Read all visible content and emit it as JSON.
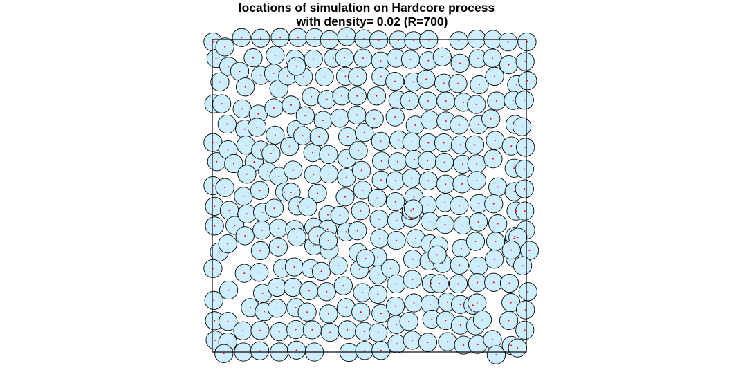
{
  "chart_data": {
    "type": "scatter",
    "title_line1": "locations of simulation on Hardcore process",
    "title_line2": "with density= 0.02 (R=700)",
    "xlim": [
      0,
      100
    ],
    "ylim": [
      0,
      100
    ],
    "grid": false,
    "legend": "none",
    "hardcore_radius": 2.9,
    "colors": {
      "disc_fill": "#cceeff",
      "disc_stroke": "#000000",
      "point": "#ff0000",
      "frame": "#000000"
    },
    "points": [
      [
        0.2,
        99.2
      ],
      [
        1.2,
        93.9
      ],
      [
        2.4,
        86.4
      ],
      [
        0.5,
        79.4
      ],
      [
        0.2,
        67.0
      ],
      [
        1.4,
        60.9
      ],
      [
        0.2,
        53.2
      ],
      [
        0.7,
        46.6
      ],
      [
        0.7,
        40.3
      ],
      [
        2.2,
        32.0
      ],
      [
        0.2,
        26.7
      ],
      [
        0.5,
        16.5
      ],
      [
        0.7,
        10.0
      ],
      [
        0.9,
        3.8
      ],
      [
        4.0,
        97.6
      ],
      [
        5.2,
        91.4
      ],
      [
        3.0,
        79.4
      ],
      [
        4.7,
        72.9
      ],
      [
        5.0,
        64.7
      ],
      [
        6.8,
        60.3
      ],
      [
        4.0,
        52.6
      ],
      [
        5.4,
        45.3
      ],
      [
        7.2,
        40.5
      ],
      [
        4.9,
        34.6
      ],
      [
        5.2,
        19.8
      ],
      [
        5.0,
        9.8
      ],
      [
        4.9,
        3.2
      ],
      [
        3.7,
        -0.5
      ],
      [
        9.3,
        100.6
      ],
      [
        8.7,
        89.8
      ],
      [
        10.5,
        84.8
      ],
      [
        9.5,
        77.8
      ],
      [
        10.3,
        71.3
      ],
      [
        10.7,
        66.2
      ],
      [
        13.3,
        60.8
      ],
      [
        11.0,
        56.9
      ],
      [
        9.9,
        49.8
      ],
      [
        11.0,
        44.2
      ],
      [
        10.4,
        37.2
      ],
      [
        10.2,
        25.2
      ],
      [
        12.1,
        14.2
      ],
      [
        9.7,
        6.8
      ],
      [
        9.9,
        0.0
      ],
      [
        15.4,
        100.4
      ],
      [
        13.0,
        94.1
      ],
      [
        15.4,
        88.5
      ],
      [
        14.6,
        76.1
      ],
      [
        14.2,
        71.9
      ],
      [
        15.4,
        64.6
      ],
      [
        17.6,
        57.7
      ],
      [
        15.1,
        51.7
      ],
      [
        16.0,
        44.7
      ],
      [
        15.8,
        39.0
      ],
      [
        15.3,
        32.4
      ],
      [
        14.9,
        25.5
      ],
      [
        16.0,
        18.8
      ],
      [
        16.5,
        12.9
      ],
      [
        15.2,
        6.9
      ],
      [
        15.1,
        0.4
      ],
      [
        21.6,
        100.6
      ],
      [
        20.0,
        94.9
      ],
      [
        19.5,
        89.2
      ],
      [
        21.2,
        84.2
      ],
      [
        19.6,
        78.1
      ],
      [
        20.0,
        69.4
      ],
      [
        18.7,
        63.5
      ],
      [
        21.2,
        56.2
      ],
      [
        23.0,
        51.2
      ],
      [
        19.7,
        46.0
      ],
      [
        21.1,
        39.6
      ],
      [
        21.0,
        33.6
      ],
      [
        22.3,
        26.8
      ],
      [
        20.6,
        20.7
      ],
      [
        20.6,
        14.0
      ],
      [
        21.3,
        6.5
      ],
      [
        21.3,
        0.0
      ],
      [
        27.3,
        100.6
      ],
      [
        26.3,
        93.7
      ],
      [
        24.0,
        88.3
      ],
      [
        25.1,
        79.0
      ],
      [
        26.7,
        71.1
      ],
      [
        24.6,
        65.8
      ],
      [
        25.7,
        58.2
      ],
      [
        25.1,
        51.1
      ],
      [
        27.1,
        46.7
      ],
      [
        26.2,
        39.2
      ],
      [
        26.1,
        27.2
      ],
      [
        25.7,
        20.7
      ],
      [
        26.6,
        14.2
      ],
      [
        26.6,
        7.2
      ],
      [
        26.8,
        0.6
      ],
      [
        32.6,
        100.6
      ],
      [
        32.2,
        93.7
      ],
      [
        29.0,
        88.0
      ],
      [
        31.5,
        81.7
      ],
      [
        29.6,
        75.6
      ],
      [
        28.8,
        69.2
      ],
      [
        32.0,
        63.8
      ],
      [
        32.2,
        56.8
      ],
      [
        33.5,
        50.8
      ],
      [
        30.4,
        46.4
      ],
      [
        32.3,
        40.0
      ],
      [
        32.3,
        34.0
      ],
      [
        31.4,
        26.7
      ],
      [
        30.8,
        19.6
      ],
      [
        30.2,
        12.8
      ],
      [
        31.8,
        7.1
      ],
      [
        32.5,
        0.0
      ],
      [
        37.3,
        99.9
      ],
      [
        38.5,
        94.0
      ],
      [
        35.7,
        88.0
      ],
      [
        36.5,
        80.8
      ],
      [
        35.3,
        74.1
      ],
      [
        34.0,
        68.9
      ],
      [
        37.0,
        63.2
      ],
      [
        37.1,
        57.0
      ],
      [
        36.8,
        43.9
      ],
      [
        36.7,
        39.3
      ],
      [
        37.2,
        32.6
      ],
      [
        34.7,
        25.8
      ],
      [
        36.4,
        19.3
      ],
      [
        37.0,
        12.2
      ],
      [
        37.5,
        6.3
      ],
      [
        42.8,
        100.9
      ],
      [
        42.1,
        94.2
      ],
      [
        42.4,
        88.2
      ],
      [
        41.2,
        81.9
      ],
      [
        40.6,
        74.8
      ],
      [
        43.1,
        68.9
      ],
      [
        42.9,
        61.9
      ],
      [
        42.7,
        55.8
      ],
      [
        42.3,
        49.6
      ],
      [
        40.6,
        43.7
      ],
      [
        42.6,
        38.4
      ],
      [
        40.1,
        27.6
      ],
      [
        41.7,
        21.2
      ],
      [
        42.6,
        14.2
      ],
      [
        43.0,
        7.1
      ],
      [
        43.5,
        -0.1
      ],
      [
        48.2,
        100.2
      ],
      [
        48.0,
        94.0
      ],
      [
        46.2,
        88.1
      ],
      [
        46.1,
        81.9
      ],
      [
        46.0,
        75.8
      ],
      [
        48.4,
        70.2
      ],
      [
        46.5,
        64.4
      ],
      [
        47.5,
        58.1
      ],
      [
        47.9,
        51.8
      ],
      [
        47.2,
        45.2
      ],
      [
        46.2,
        38.8
      ],
      [
        46.4,
        31.8
      ],
      [
        46.9,
        26.4
      ],
      [
        47.8,
        19.0
      ],
      [
        47.3,
        12.8
      ],
      [
        48.4,
        6.6
      ],
      [
        48.5,
        0.5
      ],
      [
        53.0,
        99.8
      ],
      [
        53.6,
        93.1
      ],
      [
        53.7,
        88.1
      ],
      [
        52.3,
        81.9
      ],
      [
        51.6,
        74.6
      ],
      [
        53.6,
        67.4
      ],
      [
        53.9,
        61.1
      ],
      [
        53.8,
        55.0
      ],
      [
        52.5,
        49.2
      ],
      [
        53.1,
        42.5
      ],
      [
        53.3,
        36.3
      ],
      [
        52.6,
        30.4
      ],
      [
        52.8,
        24.7
      ],
      [
        52.7,
        18.5
      ],
      [
        53.7,
        12.3
      ],
      [
        52.8,
        6.2
      ],
      [
        53.7,
        0.5
      ],
      [
        59.3,
        99.8
      ],
      [
        58.5,
        94.0
      ],
      [
        58.1,
        86.6
      ],
      [
        59.1,
        80.6
      ],
      [
        58.2,
        75.2
      ],
      [
        59.4,
        67.8
      ],
      [
        59.0,
        60.9
      ],
      [
        58.3,
        54.8
      ],
      [
        58.3,
        48.1
      ],
      [
        58.7,
        42.0
      ],
      [
        58.6,
        35.7
      ],
      [
        56.8,
        26.7
      ],
      [
        58.6,
        21.8
      ],
      [
        58.3,
        14.7
      ],
      [
        58.6,
        8.8
      ],
      [
        58.8,
        2.6
      ],
      [
        64.1,
        99.6
      ],
      [
        63.1,
        93.6
      ],
      [
        64.0,
        86.4
      ],
      [
        62.8,
        80.4
      ],
      [
        64.6,
        72.6
      ],
      [
        63.5,
        67.2
      ],
      [
        64.3,
        61.6
      ],
      [
        63.4,
        55.6
      ],
      [
        64.2,
        49.6
      ],
      [
        63.2,
        42.9
      ],
      [
        64.8,
        36.3
      ],
      [
        63.8,
        29.7
      ],
      [
        63.7,
        23.2
      ],
      [
        64.2,
        15.7
      ],
      [
        62.6,
        9.8
      ],
      [
        63.7,
        3.8
      ],
      [
        68.9,
        99.9
      ],
      [
        68.8,
        93.2
      ],
      [
        68.1,
        87.3
      ],
      [
        68.7,
        80.3
      ],
      [
        69.3,
        74.2
      ],
      [
        68.8,
        66.9
      ],
      [
        68.5,
        61.2
      ],
      [
        68.8,
        54.8
      ],
      [
        68.5,
        47.0
      ],
      [
        69.3,
        41.8
      ],
      [
        69.3,
        34.6
      ],
      [
        69.0,
        29.1
      ],
      [
        69.7,
        22.0
      ],
      [
        69.3,
        15.3
      ],
      [
        69.9,
        10.5
      ],
      [
        68.6,
        3.1
      ],
      [
        73.2,
        94.4
      ],
      [
        73.7,
        86.0
      ],
      [
        74.4,
        80.3
      ],
      [
        74.4,
        73.9
      ],
      [
        73.7,
        66.9
      ],
      [
        73.9,
        60.7
      ],
      [
        74.3,
        53.7
      ],
      [
        74.1,
        47.8
      ],
      [
        74.1,
        40.8
      ],
      [
        72.1,
        34.0
      ],
      [
        73.3,
        28.3
      ],
      [
        72.3,
        21.9
      ],
      [
        74.8,
        16.0
      ],
      [
        74.3,
        10.1
      ],
      [
        74.9,
        3.3
      ],
      [
        78.5,
        99.6
      ],
      [
        78.9,
        92.4
      ],
      [
        78.2,
        85.9
      ],
      [
        80.0,
        79.9
      ],
      [
        78.6,
        72.6
      ],
      [
        79.0,
        66.3
      ],
      [
        79.7,
        60.1
      ],
      [
        79.5,
        53.8
      ],
      [
        78.6,
        46.8
      ],
      [
        79.8,
        40.6
      ],
      [
        79.3,
        33.1
      ],
      [
        78.7,
        27.8
      ],
      [
        78.3,
        21.8
      ],
      [
        79.0,
        15.2
      ],
      [
        79.0,
        8.6
      ],
      [
        80.0,
        2.2
      ],
      [
        84.2,
        100.1
      ],
      [
        84.6,
        93.8
      ],
      [
        85.0,
        85.5
      ],
      [
        84.1,
        79.2
      ],
      [
        84.8,
        72.7
      ],
      [
        83.6,
        66.3
      ],
      [
        84.2,
        60.2
      ],
      [
        84.2,
        54.9
      ],
      [
        84.9,
        47.5
      ],
      [
        84.7,
        41.6
      ],
      [
        83.8,
        35.4
      ],
      [
        84.8,
        27.5
      ],
      [
        84.4,
        22.2
      ],
      [
        83.0,
        15.0
      ],
      [
        83.8,
        8.4
      ],
      [
        84.5,
        2.4
      ],
      [
        89.4,
        100.0
      ],
      [
        89.2,
        94.0
      ],
      [
        89.9,
        88.2
      ],
      [
        90.5,
        80.3
      ],
      [
        88.7,
        74.6
      ],
      [
        90.1,
        67.7
      ],
      [
        89.4,
        61.8
      ],
      [
        90.9,
        52.8
      ],
      [
        89.6,
        47.4
      ],
      [
        90.9,
        41.0
      ],
      [
        90.2,
        35.4
      ],
      [
        89.8,
        29.7
      ],
      [
        89.6,
        22.3
      ],
      [
        84.3,
        15.7
      ],
      [
        86.0,
        10.3
      ],
      [
        89.2,
        4.0
      ],
      [
        90.4,
        -0.9
      ],
      [
        94.2,
        99.2
      ],
      [
        94.4,
        91.9
      ],
      [
        96.9,
        85.5
      ],
      [
        95.8,
        80.5
      ],
      [
        96.4,
        72.8
      ],
      [
        95.2,
        65.9
      ],
      [
        96.1,
        58.8
      ],
      [
        96.1,
        51.3
      ],
      [
        96.7,
        45.1
      ],
      [
        96.1,
        36.3
      ],
      [
        96.4,
        30.1
      ],
      [
        94.6,
        22.0
      ],
      [
        95.1,
        15.8
      ],
      [
        94.4,
        10.1
      ],
      [
        95.2,
        2.1
      ],
      [
        100.2,
        99.2
      ],
      [
        99.6,
        92.9
      ],
      [
        100.4,
        86.8
      ],
      [
        99.4,
        80.6
      ],
      [
        98.6,
        72.1
      ],
      [
        99.7,
        65.5
      ],
      [
        99.4,
        58.5
      ],
      [
        99.4,
        52.2
      ],
      [
        99.5,
        45.1
      ],
      [
        99.8,
        39.0
      ],
      [
        101.0,
        32.5
      ],
      [
        98.8,
        27.6
      ],
      [
        100.5,
        19.3
      ],
      [
        99.7,
        13.5
      ],
      [
        99.5,
        7.0
      ],
      [
        97.2,
        1.3
      ],
      [
        63.3,
        45.3
      ],
      [
        64.0,
        45.8
      ],
      [
        48.8,
        29.9
      ],
      [
        96.3,
        37.0
      ],
      [
        97.3,
        36.7
      ],
      [
        95.2,
        32.6
      ],
      [
        33.5,
        37.2
      ],
      [
        36.9,
        35.6
      ],
      [
        26.9,
        36.8
      ],
      [
        26.8,
        91.4
      ],
      [
        71.6,
        31.1
      ]
    ]
  }
}
